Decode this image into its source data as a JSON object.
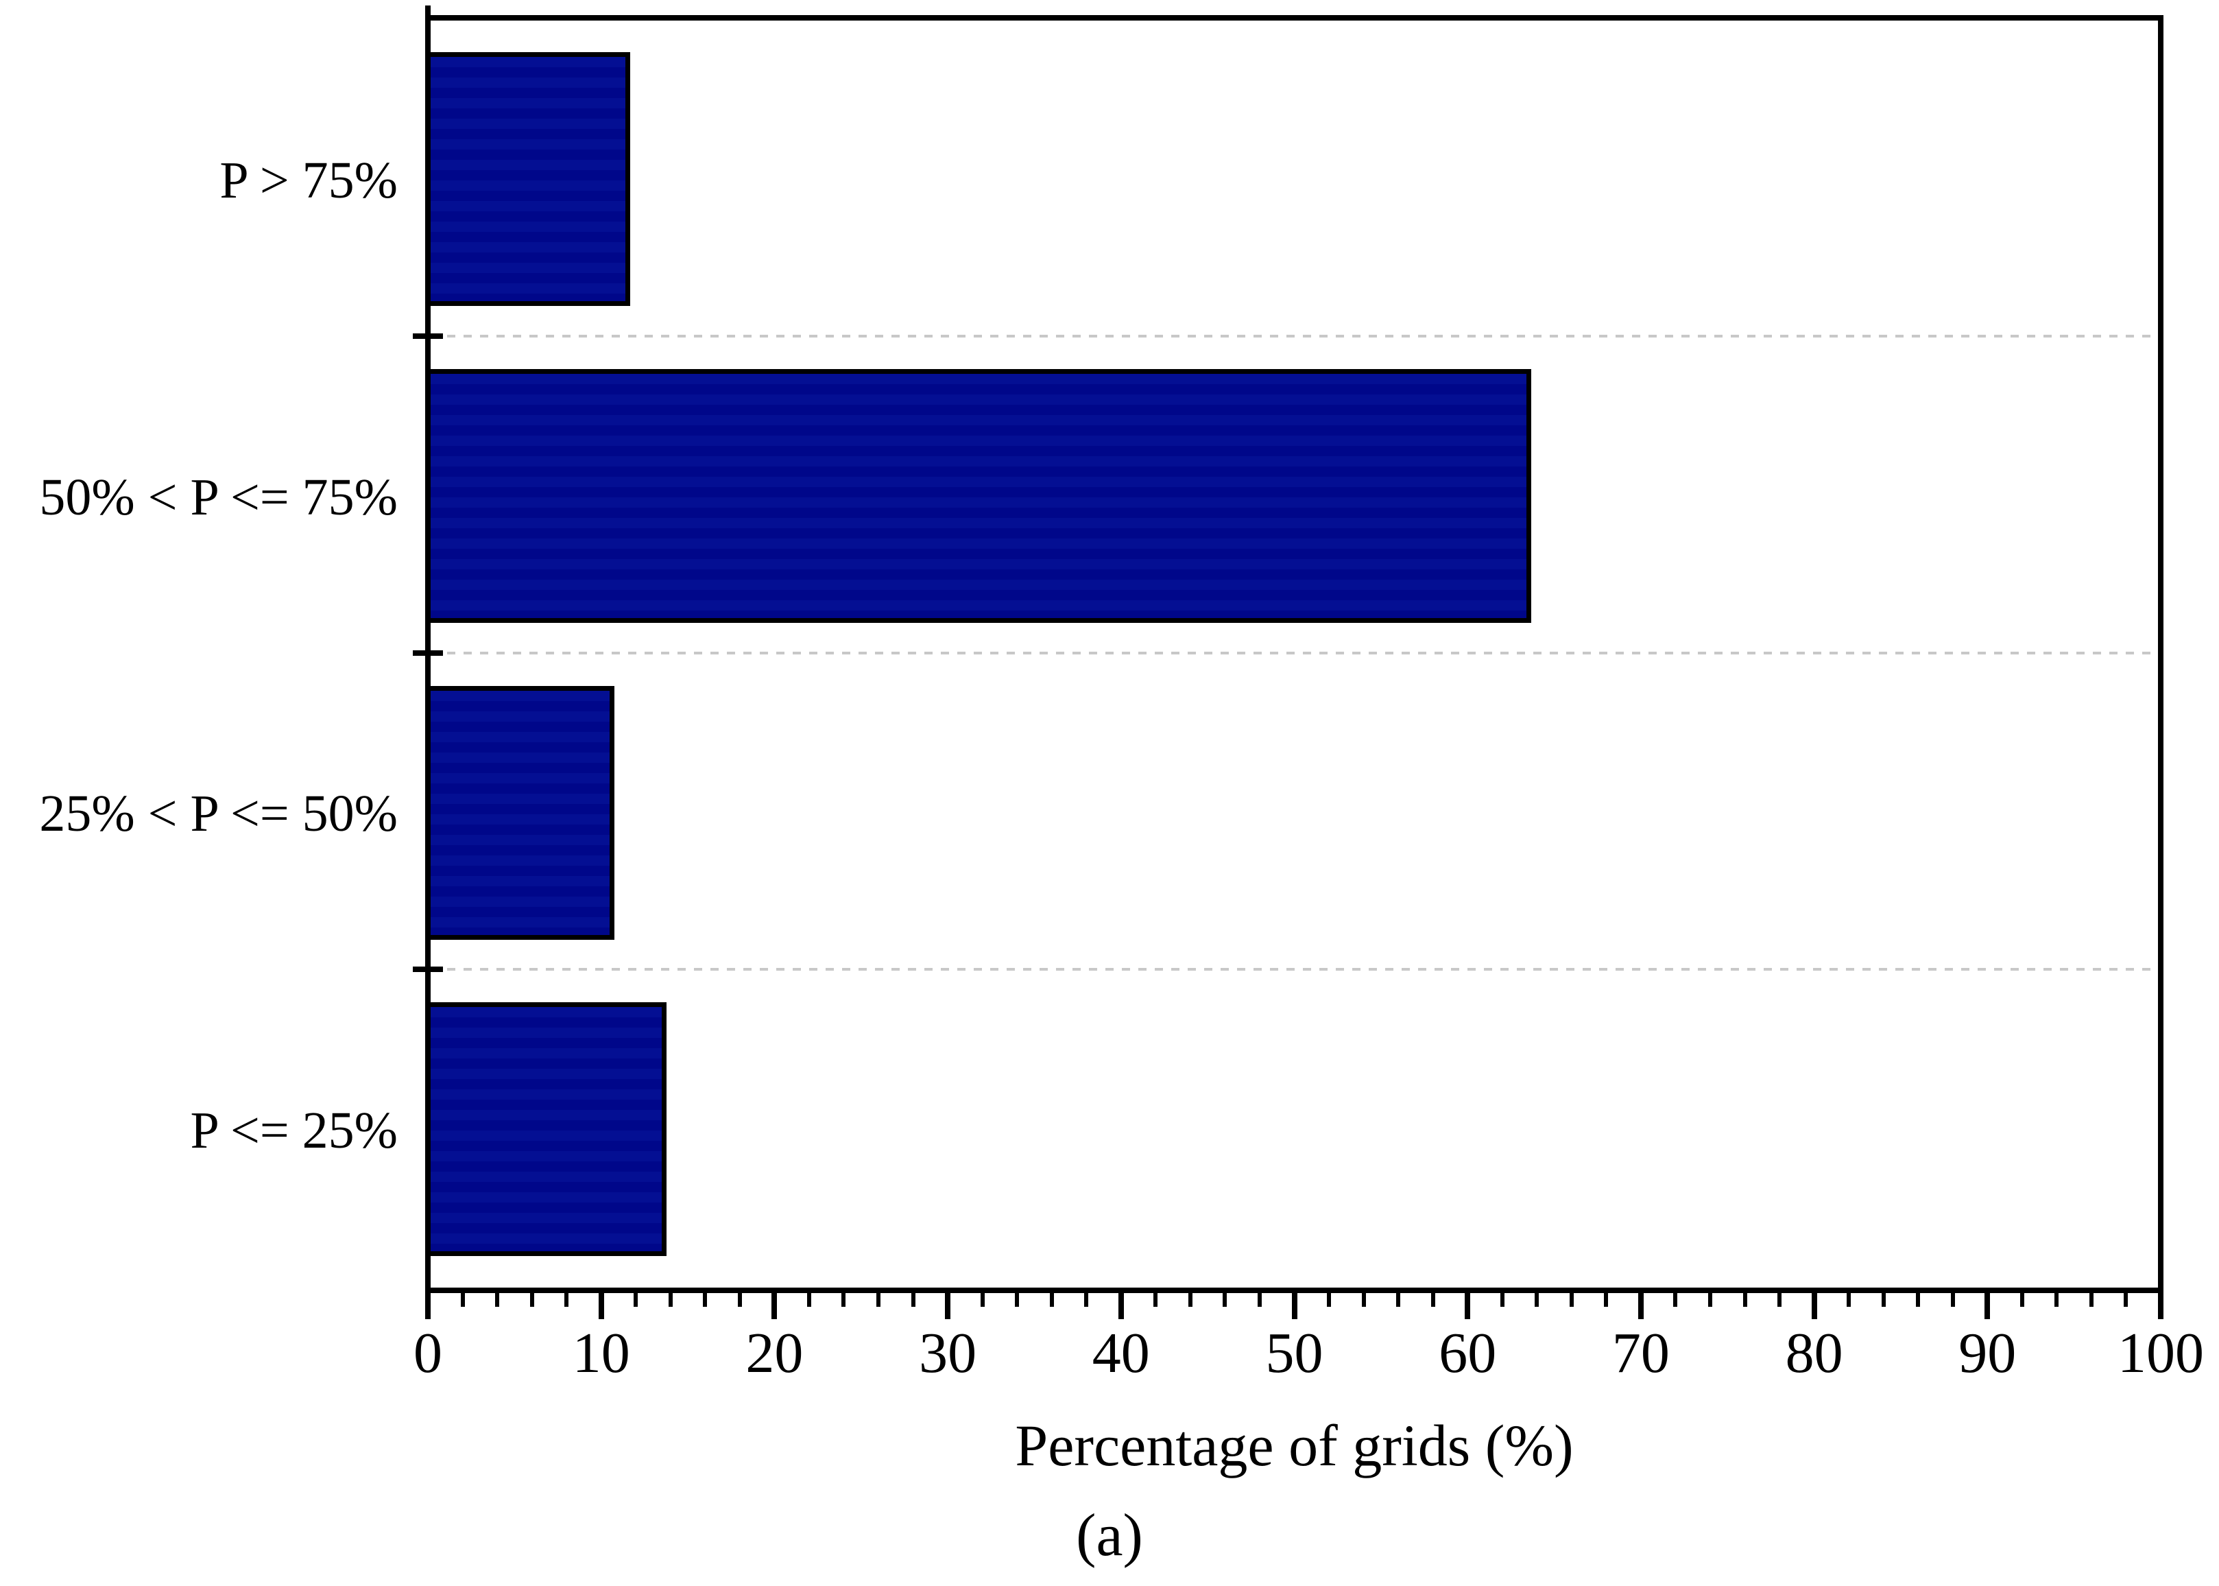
{
  "chart_data": {
    "type": "bar",
    "orientation": "horizontal",
    "categories": [
      "P > 75%",
      "50% < P <= 75%",
      "25% < P <= 50%",
      "P <= 25%"
    ],
    "values": [
      11.5,
      63.5,
      10.6,
      13.6
    ],
    "xlabel": "Percentage of grids (%)",
    "xlim": [
      0,
      100
    ],
    "xticks": [
      0,
      10,
      20,
      30,
      40,
      50,
      60,
      70,
      80,
      90,
      100
    ],
    "minor_tick_step": 2,
    "grid": "dashed horizontal separators between category bands",
    "legend_position": "none",
    "bar_color": "#01098b",
    "bar_border_color": "#000000",
    "gridline_color": "#c8c8c8",
    "axis_color": "#000000"
  },
  "caption": "(a)"
}
